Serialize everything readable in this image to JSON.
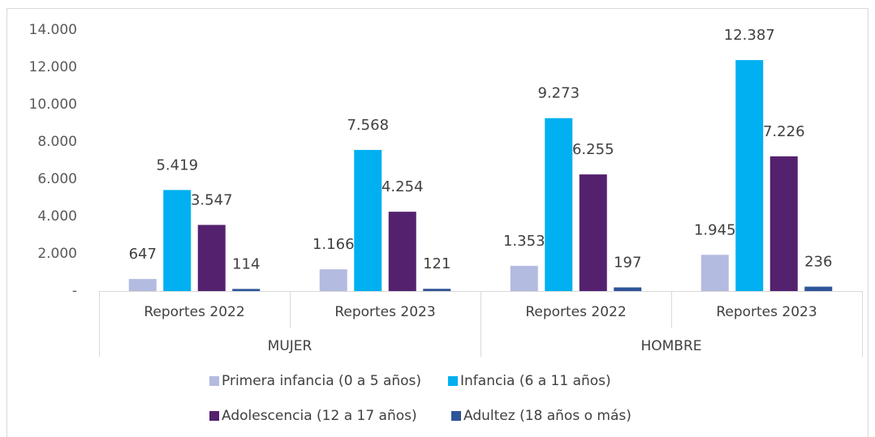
{
  "chart_data": {
    "type": "bar",
    "categories": [
      "Reportes 2022",
      "Reportes 2023",
      "Reportes 2022",
      "Reportes 2023"
    ],
    "groups": [
      "MUJER",
      "HOMBRE"
    ],
    "series": [
      {
        "name": "Primera infancia (0 a 5 años)",
        "color": "#b4bbe0",
        "values": [
          647,
          1166,
          1353,
          1945
        ],
        "value_labels": [
          "647",
          "1.166",
          "1.353",
          "1.945"
        ]
      },
      {
        "name": "Infancia (6 a 11 años)",
        "color": "#00b0f0",
        "values": [
          5419,
          7568,
          9273,
          12387
        ],
        "value_labels": [
          "5.419",
          "7.568",
          "9.273",
          "12.387"
        ]
      },
      {
        "name": "Adolescencia (12 a 17 años)",
        "color": "#54216f",
        "values": [
          3547,
          4254,
          6255,
          7226
        ],
        "value_labels": [
          "3.547",
          "4.254",
          "6.255",
          "7.226"
        ]
      },
      {
        "name": "Adultez (18 años o más)",
        "color": "#2e5597",
        "values": [
          114,
          121,
          197,
          236
        ],
        "value_labels": [
          "114",
          "121",
          "197",
          "236"
        ]
      }
    ],
    "ylim": [
      0,
      14000
    ],
    "yticks": [
      {
        "value": 0,
        "label": "-"
      },
      {
        "value": 2000,
        "label": "2.000"
      },
      {
        "value": 4000,
        "label": "4.000"
      },
      {
        "value": 6000,
        "label": "6.000"
      },
      {
        "value": 8000,
        "label": "8.000"
      },
      {
        "value": 10000,
        "label": "10.000"
      },
      {
        "value": 12000,
        "label": "12.000"
      },
      {
        "value": 14000,
        "label": "14.000"
      }
    ],
    "grid": false,
    "legend": "bottom"
  }
}
